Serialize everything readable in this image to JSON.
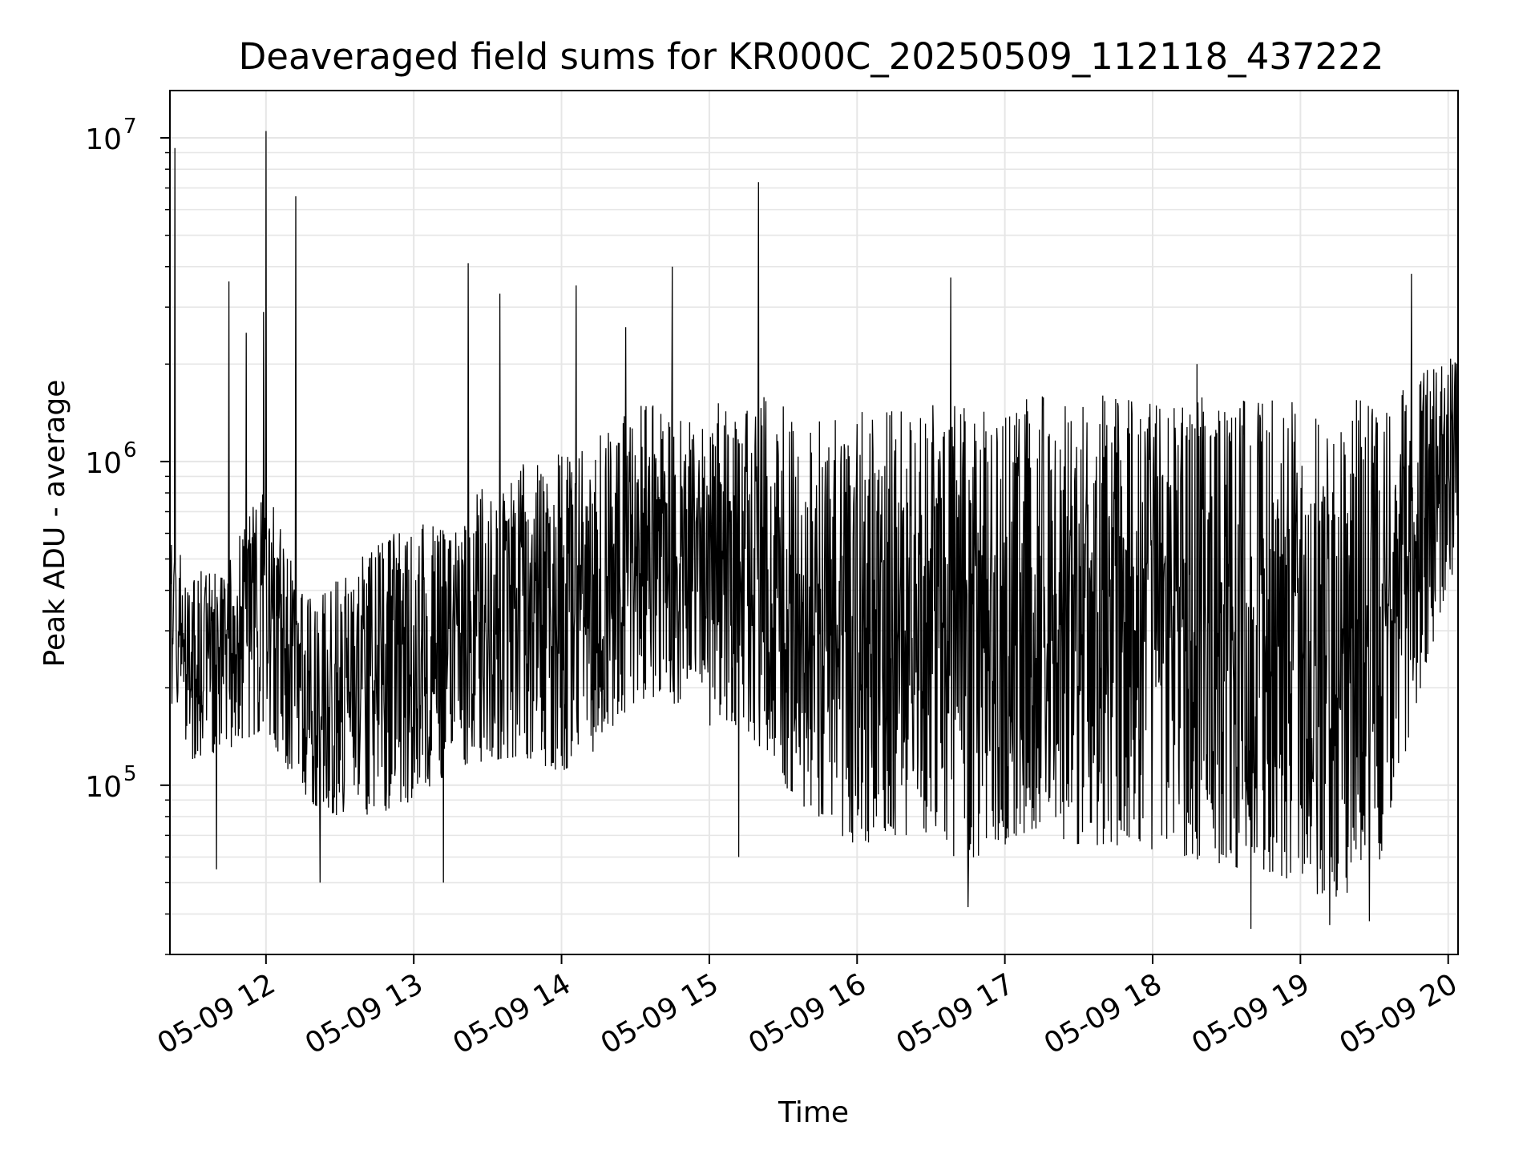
{
  "chart_data": {
    "type": "line",
    "title": "Deaveraged field sums for KR000C_20250509_112118_437222",
    "xlabel": "Time",
    "ylabel": "Peak ADU - average",
    "yscale": "log",
    "ylim": [
      30000,
      14000000
    ],
    "xlim": [
      "2025-05-09 11:21",
      "2025-05-09 20:04"
    ],
    "grid": true,
    "line_color": "#000000",
    "grid_color": "#e6e6e6",
    "x_ticks": [
      {
        "t": "2025-05-09 12:00",
        "label": "05-09 12"
      },
      {
        "t": "2025-05-09 13:00",
        "label": "05-09 13"
      },
      {
        "t": "2025-05-09 14:00",
        "label": "05-09 14"
      },
      {
        "t": "2025-05-09 15:00",
        "label": "05-09 15"
      },
      {
        "t": "2025-05-09 16:00",
        "label": "05-09 16"
      },
      {
        "t": "2025-05-09 17:00",
        "label": "05-09 17"
      },
      {
        "t": "2025-05-09 18:00",
        "label": "05-09 18"
      },
      {
        "t": "2025-05-09 19:00",
        "label": "05-09 19"
      },
      {
        "t": "2025-05-09 20:00",
        "label": "05-09 20"
      }
    ],
    "y_ticks": [
      {
        "value": 100000,
        "base": "10",
        "exp": "5"
      },
      {
        "value": 1000000,
        "base": "10",
        "exp": "6"
      },
      {
        "value": 10000000,
        "base": "10",
        "exp": "7"
      }
    ],
    "envelope": {
      "x": [
        "2025-05-09 11:21",
        "2025-05-09 11:30",
        "2025-05-09 11:45",
        "2025-05-09 12:00",
        "2025-05-09 12:15",
        "2025-05-09 12:30",
        "2025-05-09 12:45",
        "2025-05-09 13:00",
        "2025-05-09 13:15",
        "2025-05-09 13:30",
        "2025-05-09 13:45",
        "2025-05-09 14:00",
        "2025-05-09 14:15",
        "2025-05-09 14:30",
        "2025-05-09 14:45",
        "2025-05-09 15:00",
        "2025-05-09 15:15",
        "2025-05-09 15:30",
        "2025-05-09 15:45",
        "2025-05-09 16:00",
        "2025-05-09 16:15",
        "2025-05-09 16:30",
        "2025-05-09 16:45",
        "2025-05-09 17:00",
        "2025-05-09 17:15",
        "2025-05-09 17:30",
        "2025-05-09 17:45",
        "2025-05-09 18:00",
        "2025-05-09 18:15",
        "2025-05-09 18:30",
        "2025-05-09 18:45",
        "2025-05-09 19:00",
        "2025-05-09 19:15",
        "2025-05-09 19:30",
        "2025-05-09 19:45",
        "2025-05-09 20:04"
      ],
      "low": [
        150000,
        120000,
        130000,
        150000,
        90000,
        80000,
        80000,
        90000,
        110000,
        120000,
        120000,
        110000,
        130000,
        180000,
        180000,
        150000,
        150000,
        100000,
        75000,
        65000,
        70000,
        70000,
        55000,
        65000,
        70000,
        65000,
        65000,
        60000,
        60000,
        55000,
        55000,
        45000,
        45000,
        50000,
        150000,
        500000
      ],
      "high": [
        600000,
        450000,
        500000,
        900000,
        400000,
        450000,
        550000,
        700000,
        600000,
        900000,
        1000000,
        1100000,
        1200000,
        1500000,
        1500000,
        1500000,
        1600000,
        1600000,
        1500000,
        1500000,
        1500000,
        1500000,
        1600000,
        1600000,
        1600000,
        1600000,
        1600000,
        1600000,
        1600000,
        1600000,
        1600000,
        1600000,
        1600000,
        1600000,
        1800000,
        2200000
      ]
    },
    "spikes": [
      {
        "t": "2025-05-09 11:23",
        "value": 9300000
      },
      {
        "t": "2025-05-09 11:52",
        "value": 2500000
      },
      {
        "t": "2025-05-09 11:45",
        "value": 3600000
      },
      {
        "t": "2025-05-09 11:59",
        "value": 2900000
      },
      {
        "t": "2025-05-09 12:00",
        "value": 10500000
      },
      {
        "t": "2025-05-09 12:12",
        "value": 6600000
      },
      {
        "t": "2025-05-09 13:22",
        "value": 4100000
      },
      {
        "t": "2025-05-09 13:35",
        "value": 3300000
      },
      {
        "t": "2025-05-09 14:06",
        "value": 3500000
      },
      {
        "t": "2025-05-09 14:26",
        "value": 2600000
      },
      {
        "t": "2025-05-09 14:45",
        "value": 4000000
      },
      {
        "t": "2025-05-09 15:20",
        "value": 7300000
      },
      {
        "t": "2025-05-09 16:38",
        "value": 3700000
      },
      {
        "t": "2025-05-09 18:18",
        "value": 2000000
      },
      {
        "t": "2025-05-09 19:45",
        "value": 3800000
      },
      {
        "t": "2025-05-09 11:40",
        "value": 55000
      },
      {
        "t": "2025-05-09 12:22",
        "value": 50000
      },
      {
        "t": "2025-05-09 13:12",
        "value": 50000
      },
      {
        "t": "2025-05-09 15:12",
        "value": 60000
      },
      {
        "t": "2025-05-09 16:45",
        "value": 42000
      },
      {
        "t": "2025-05-09 18:40",
        "value": 36000
      },
      {
        "t": "2025-05-09 19:12",
        "value": 37000
      },
      {
        "t": "2025-05-09 19:28",
        "value": 38000
      }
    ]
  }
}
